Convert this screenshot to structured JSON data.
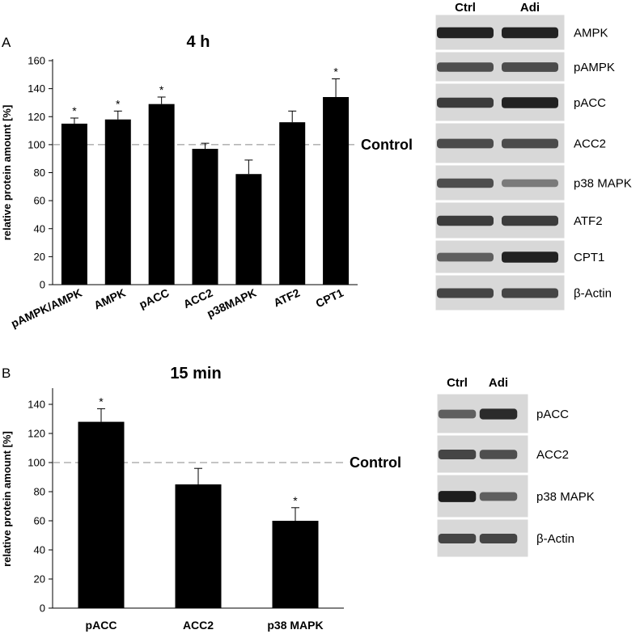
{
  "panels": [
    {
      "label": "A"
    },
    {
      "label": "B"
    }
  ],
  "chart_data": [
    {
      "type": "bar",
      "title": "4 h",
      "ylabel": "relative protein amount [%]",
      "xlabel": "",
      "categories": [
        "pAMPK/AMPK",
        "AMPK",
        "pACC",
        "ACC2",
        "p38MAPK",
        "ATF2",
        "CPT1"
      ],
      "values": [
        115,
        118,
        129,
        97,
        79,
        116,
        134
      ],
      "errors": [
        4,
        6,
        5,
        4,
        10,
        8,
        13
      ],
      "significant": [
        true,
        true,
        true,
        false,
        false,
        false,
        true
      ],
      "significance_marker": "*",
      "ylim": [
        0,
        160
      ],
      "yticks": [
        0,
        20,
        40,
        60,
        80,
        100,
        120,
        140,
        160
      ],
      "reference_line": {
        "value": 100,
        "label": "Control",
        "style": "dashed"
      },
      "bar_color": "#000000",
      "grid": false
    },
    {
      "type": "bar",
      "title": "15 min",
      "ylabel": "relative protein amount [%]",
      "xlabel": "",
      "categories": [
        "pACC",
        "ACC2",
        "p38 MAPK"
      ],
      "values": [
        128,
        85,
        60
      ],
      "errors": [
        9,
        11,
        9
      ],
      "significant": [
        true,
        false,
        true
      ],
      "significance_marker": "*",
      "ylim": [
        0,
        150
      ],
      "yticks": [
        0,
        20,
        40,
        60,
        80,
        100,
        120,
        140
      ],
      "reference_line": {
        "value": 100,
        "label": "Control",
        "style": "dashed"
      },
      "bar_color": "#000000",
      "grid": false
    }
  ],
  "blots": [
    {
      "columns": [
        "Ctrl",
        "Adi"
      ],
      "rows": [
        {
          "label": "AMPK",
          "intensity": [
            0.95,
            0.95
          ]
        },
        {
          "label": "pAMPK",
          "intensity": [
            0.7,
            0.72
          ]
        },
        {
          "label": "pACC",
          "intensity": [
            0.8,
            0.95
          ]
        },
        {
          "label": "ACC2",
          "intensity": [
            0.72,
            0.72
          ]
        },
        {
          "label": "p38 MAPK",
          "intensity": [
            0.7,
            0.45
          ]
        },
        {
          "label": "ATF2",
          "intensity": [
            0.8,
            0.8
          ]
        },
        {
          "label": "CPT1",
          "intensity": [
            0.6,
            0.95
          ]
        },
        {
          "label": "β-Actin",
          "intensity": [
            0.75,
            0.75
          ]
        }
      ]
    },
    {
      "columns": [
        "Ctrl",
        "Adi"
      ],
      "rows": [
        {
          "label": "pACC",
          "intensity": [
            0.6,
            0.9
          ]
        },
        {
          "label": "ACC2",
          "intensity": [
            0.75,
            0.7
          ]
        },
        {
          "label": "p38 MAPK",
          "intensity": [
            0.98,
            0.6
          ]
        },
        {
          "label": "β-Actin",
          "intensity": [
            0.75,
            0.75
          ]
        }
      ]
    }
  ]
}
